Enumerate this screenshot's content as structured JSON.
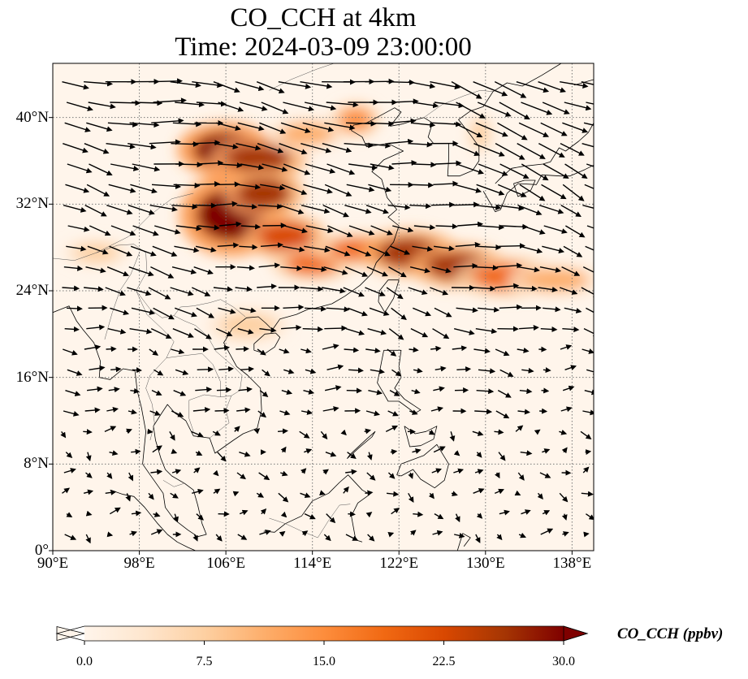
{
  "title": {
    "line1": "CO_CCH at 4km",
    "line2": "Time: 2024-03-09 23:00:00"
  },
  "map": {
    "lon_range": [
      90,
      140
    ],
    "lat_range": [
      0,
      45
    ],
    "lat_ticks": [
      {
        "value": 0,
        "label": "0°"
      },
      {
        "value": 8,
        "label": "8°N"
      },
      {
        "value": 16,
        "label": "16°N"
      },
      {
        "value": 24,
        "label": "24°N"
      },
      {
        "value": 32,
        "label": "32°N"
      },
      {
        "value": 40,
        "label": "40°N"
      }
    ],
    "lon_ticks": [
      {
        "value": 90,
        "label": "90°E"
      },
      {
        "value": 98,
        "label": "98°E"
      },
      {
        "value": 106,
        "label": "106°E"
      },
      {
        "value": 114,
        "label": "114°E"
      },
      {
        "value": 122,
        "label": "122°E"
      },
      {
        "value": 130,
        "label": "130°E"
      },
      {
        "value": 138,
        "label": "138°E"
      }
    ],
    "gridlines": true,
    "plumes": [
      {
        "lon": 106.0,
        "lat": 37.0,
        "rx": 3.0,
        "ry": 1.6,
        "value": 30
      },
      {
        "lon": 109.0,
        "lat": 36.2,
        "rx": 3.0,
        "ry": 1.3,
        "value": 27
      },
      {
        "lon": 106.5,
        "lat": 31.0,
        "rx": 3.2,
        "ry": 2.4,
        "value": 30
      },
      {
        "lon": 109.5,
        "lat": 33.0,
        "rx": 2.5,
        "ry": 1.4,
        "value": 26
      },
      {
        "lon": 111.5,
        "lat": 29.0,
        "rx": 2.5,
        "ry": 1.3,
        "value": 24
      },
      {
        "lon": 114.0,
        "lat": 26.5,
        "rx": 2.5,
        "ry": 1.0,
        "value": 20
      },
      {
        "lon": 118.5,
        "lat": 27.8,
        "rx": 3.0,
        "ry": 1.0,
        "value": 18
      },
      {
        "lon": 123.0,
        "lat": 27.5,
        "rx": 3.0,
        "ry": 1.4,
        "value": 28
      },
      {
        "lon": 127.5,
        "lat": 26.3,
        "rx": 3.0,
        "ry": 1.3,
        "value": 27
      },
      {
        "lon": 132.0,
        "lat": 25.3,
        "rx": 3.2,
        "ry": 1.2,
        "value": 18
      },
      {
        "lon": 136.5,
        "lat": 25.0,
        "rx": 3.0,
        "ry": 1.0,
        "value": 12
      },
      {
        "lon": 113.5,
        "lat": 38.5,
        "rx": 2.5,
        "ry": 1.0,
        "value": 12
      },
      {
        "lon": 118.0,
        "lat": 39.8,
        "rx": 1.5,
        "ry": 1.0,
        "value": 14
      },
      {
        "lon": 108.0,
        "lat": 20.8,
        "rx": 2.5,
        "ry": 1.0,
        "value": 6
      },
      {
        "lon": 94.0,
        "lat": 27.5,
        "rx": 2.0,
        "ry": 0.8,
        "value": 6
      },
      {
        "lon": 129.5,
        "lat": 38.5,
        "rx": 0.8,
        "ry": 1.2,
        "value": 7
      }
    ],
    "coastlines": [
      [
        [
          90.0,
          22.0
        ],
        [
          91.5,
          22.6
        ],
        [
          92.2,
          21.2
        ],
        [
          92.8,
          20.4
        ],
        [
          93.8,
          19.2
        ],
        [
          94.4,
          17.5
        ],
        [
          94.3,
          16.0
        ],
        [
          95.3,
          15.8
        ],
        [
          96.5,
          16.8
        ],
        [
          97.6,
          16.6
        ],
        [
          97.8,
          14.8
        ],
        [
          98.2,
          13.2
        ],
        [
          98.6,
          11.0
        ],
        [
          98.4,
          9.0
        ],
        [
          98.3,
          8.0
        ],
        [
          99.0,
          7.0
        ],
        [
          100.2,
          5.3
        ],
        [
          100.4,
          4.0
        ],
        [
          101.2,
          2.9
        ],
        [
          102.5,
          1.9
        ],
        [
          103.4,
          1.3
        ],
        [
          104.2,
          1.5
        ],
        [
          103.8,
          2.5
        ],
        [
          103.4,
          4.2
        ],
        [
          103.0,
          5.6
        ],
        [
          102.2,
          6.2
        ],
        [
          101.0,
          6.9
        ],
        [
          100.4,
          7.5
        ],
        [
          100.0,
          8.5
        ],
        [
          99.5,
          10.2
        ],
        [
          99.3,
          11.5
        ],
        [
          100.0,
          12.6
        ],
        [
          100.6,
          13.5
        ],
        [
          101.3,
          12.7
        ],
        [
          102.3,
          12.0
        ],
        [
          103.0,
          10.6
        ],
        [
          104.5,
          10.4
        ],
        [
          105.0,
          9.0
        ],
        [
          106.7,
          10.2
        ],
        [
          107.6,
          10.8
        ],
        [
          108.9,
          11.3
        ],
        [
          109.3,
          13.0
        ],
        [
          109.2,
          15.0
        ],
        [
          108.0,
          16.2
        ],
        [
          107.0,
          17.0
        ],
        [
          106.4,
          18.1
        ],
        [
          105.8,
          19.2
        ],
        [
          106.6,
          20.5
        ],
        [
          107.9,
          21.5
        ],
        [
          109.0,
          21.6
        ],
        [
          109.7,
          21.0
        ],
        [
          110.3,
          20.4
        ],
        [
          111.0,
          21.4
        ],
        [
          112.5,
          21.8
        ],
        [
          113.6,
          22.3
        ],
        [
          114.3,
          22.4
        ],
        [
          115.8,
          22.8
        ],
        [
          117.0,
          23.5
        ],
        [
          118.4,
          24.5
        ],
        [
          119.5,
          25.6
        ],
        [
          119.9,
          26.6
        ],
        [
          120.7,
          27.5
        ],
        [
          121.5,
          28.5
        ],
        [
          122.0,
          30.0
        ],
        [
          121.0,
          30.8
        ],
        [
          121.8,
          31.5
        ],
        [
          120.9,
          32.6
        ],
        [
          120.4,
          34.3
        ],
        [
          119.5,
          35.0
        ],
        [
          120.6,
          36.1
        ],
        [
          122.4,
          36.9
        ],
        [
          121.0,
          37.6
        ],
        [
          119.0,
          37.3
        ],
        [
          118.6,
          38.2
        ],
        [
          117.6,
          38.8
        ],
        [
          117.8,
          39.3
        ],
        [
          119.0,
          39.5
        ],
        [
          120.5,
          40.3
        ],
        [
          121.6,
          40.9
        ],
        [
          122.2,
          40.5
        ],
        [
          121.2,
          39.2
        ],
        [
          122.3,
          39.4
        ],
        [
          123.6,
          39.8
        ],
        [
          124.3,
          40.0
        ],
        [
          125.1,
          39.5
        ],
        [
          124.7,
          38.2
        ],
        [
          125.2,
          37.6
        ],
        [
          126.6,
          37.6
        ],
        [
          126.6,
          36.2
        ],
        [
          126.5,
          34.6
        ],
        [
          127.6,
          34.6
        ],
        [
          128.8,
          35.1
        ],
        [
          129.4,
          36.0
        ],
        [
          129.4,
          37.3
        ],
        [
          128.6,
          38.4
        ],
        [
          127.5,
          39.8
        ],
        [
          128.6,
          40.6
        ],
        [
          129.8,
          41.0
        ],
        [
          130.7,
          42.4
        ],
        [
          132.0,
          43.2
        ],
        [
          133.4,
          42.9
        ],
        [
          135.2,
          43.9
        ],
        [
          137.0,
          45.0
        ]
      ],
      [
        [
          108.6,
          18.5
        ],
        [
          109.6,
          18.2
        ],
        [
          110.5,
          18.8
        ],
        [
          111.0,
          19.7
        ],
        [
          110.6,
          20.1
        ],
        [
          109.6,
          20.0
        ],
        [
          108.6,
          19.1
        ],
        [
          108.6,
          18.5
        ]
      ],
      [
        [
          120.1,
          23.0
        ],
        [
          120.7,
          22.0
        ],
        [
          121.5,
          23.3
        ],
        [
          122.0,
          25.0
        ],
        [
          121.0,
          25.0
        ],
        [
          120.2,
          24.0
        ],
        [
          120.1,
          23.0
        ]
      ],
      [
        [
          120.6,
          18.5
        ],
        [
          122.2,
          18.5
        ],
        [
          122.0,
          17.0
        ],
        [
          122.2,
          16.0
        ],
        [
          121.6,
          15.0
        ],
        [
          122.5,
          14.0
        ],
        [
          124.0,
          13.0
        ],
        [
          123.5,
          12.7
        ],
        [
          122.0,
          13.8
        ],
        [
          121.0,
          13.8
        ],
        [
          120.6,
          14.5
        ],
        [
          120.0,
          15.5
        ],
        [
          120.2,
          16.5
        ],
        [
          120.4,
          17.5
        ],
        [
          120.6,
          18.5
        ]
      ],
      [
        [
          122.5,
          11.5
        ],
        [
          123.5,
          10.8
        ],
        [
          124.5,
          11.0
        ],
        [
          125.5,
          11.5
        ],
        [
          125.2,
          10.3
        ],
        [
          124.0,
          9.7
        ],
        [
          123.0,
          9.6
        ],
        [
          122.5,
          11.5
        ]
      ],
      [
        [
          121.8,
          7.0
        ],
        [
          122.2,
          8.0
        ],
        [
          123.5,
          8.5
        ],
        [
          124.3,
          8.8
        ],
        [
          125.5,
          9.8
        ],
        [
          126.6,
          8.0
        ],
        [
          126.2,
          6.5
        ],
        [
          125.3,
          5.8
        ],
        [
          124.0,
          6.6
        ],
        [
          123.3,
          7.5
        ],
        [
          122.2,
          6.9
        ],
        [
          121.8,
          7.0
        ]
      ],
      [
        [
          117.2,
          8.5
        ],
        [
          118.3,
          9.5
        ],
        [
          119.5,
          10.5
        ],
        [
          119.8,
          11.0
        ],
        [
          119.0,
          10.3
        ],
        [
          117.5,
          8.9
        ],
        [
          117.2,
          8.5
        ]
      ],
      [
        [
          109.5,
          1.8
        ],
        [
          110.5,
          1.7
        ],
        [
          111.5,
          2.5
        ],
        [
          113.0,
          3.2
        ],
        [
          114.0,
          4.6
        ],
        [
          115.5,
          5.3
        ],
        [
          116.5,
          6.3
        ],
        [
          117.3,
          7.0
        ],
        [
          118.6,
          5.6
        ],
        [
          119.3,
          5.2
        ],
        [
          118.2,
          4.4
        ],
        [
          117.6,
          3.2
        ],
        [
          118.0,
          1.0
        ],
        [
          118.6,
          0.8
        ]
      ],
      [
        [
          95.3,
          5.6
        ],
        [
          96.5,
          5.2
        ],
        [
          97.5,
          5.0
        ],
        [
          98.5,
          4.0
        ],
        [
          99.7,
          2.5
        ],
        [
          100.6,
          1.5
        ],
        [
          101.5,
          0.8
        ],
        [
          102.5,
          0.3
        ],
        [
          103.2,
          0.0
        ]
      ],
      [
        [
          127.4,
          0.0
        ],
        [
          127.9,
          1.6
        ],
        [
          128.6,
          1.2
        ],
        [
          128.0,
          0.4
        ]
      ],
      [
        [
          129.8,
          33.2
        ],
        [
          130.9,
          31.3
        ],
        [
          131.4,
          31.5
        ],
        [
          132.0,
          33.0
        ],
        [
          133.0,
          33.9
        ],
        [
          134.7,
          33.8
        ],
        [
          135.2,
          34.7
        ],
        [
          136.9,
          34.6
        ],
        [
          137.8,
          34.6
        ],
        [
          139.2,
          35.2
        ],
        [
          140.0,
          35.6
        ]
      ],
      [
        [
          130.9,
          33.9
        ],
        [
          131.4,
          34.4
        ],
        [
          132.4,
          35.3
        ],
        [
          133.5,
          35.5
        ],
        [
          135.3,
          35.7
        ],
        [
          136.0,
          35.9
        ],
        [
          136.8,
          37.2
        ],
        [
          137.4,
          36.9
        ],
        [
          138.6,
          37.8
        ],
        [
          139.5,
          38.6
        ],
        [
          140.0,
          39.5
        ]
      ],
      [
        [
          132.6,
          33.9
        ],
        [
          133.6,
          34.2
        ],
        [
          134.6,
          34.2
        ],
        [
          134.2,
          33.3
        ],
        [
          133.0,
          32.7
        ],
        [
          132.6,
          33.9
        ]
      ],
      [
        [
          138.2,
          43.0
        ],
        [
          140.0,
          43.5
        ]
      ]
    ],
    "borders": [
      [
        [
          90.0,
          27.0
        ],
        [
          92.0,
          26.8
        ],
        [
          94.0,
          27.5
        ],
        [
          96.0,
          28.2
        ],
        [
          97.5,
          28.3
        ],
        [
          98.6,
          27.5
        ],
        [
          98.7,
          25.8
        ],
        [
          97.7,
          24.0
        ],
        [
          99.0,
          22.3
        ],
        [
          100.1,
          21.5
        ],
        [
          101.2,
          21.7
        ],
        [
          101.8,
          22.5
        ],
        [
          103.0,
          22.6
        ],
        [
          104.5,
          22.9
        ],
        [
          105.5,
          23.2
        ],
        [
          106.7,
          22.5
        ],
        [
          107.8,
          21.6
        ]
      ],
      [
        [
          98.0,
          27.5
        ],
        [
          97.2,
          25.5
        ],
        [
          96.2,
          24.0
        ],
        [
          95.5,
          22.0
        ],
        [
          94.8,
          19.5
        ]
      ],
      [
        [
          97.7,
          24.0
        ],
        [
          98.7,
          21.8
        ],
        [
          100.2,
          20.4
        ],
        [
          101.2,
          19.3
        ],
        [
          100.5,
          17.8
        ],
        [
          99.0,
          16.2
        ],
        [
          98.6,
          15.0
        ],
        [
          99.2,
          13.5
        ],
        [
          99.4,
          11.8
        ],
        [
          99.0,
          10.2
        ]
      ],
      [
        [
          101.2,
          21.7
        ],
        [
          102.2,
          21.2
        ],
        [
          103.2,
          20.8
        ],
        [
          104.3,
          19.8
        ],
        [
          105.1,
          18.4
        ],
        [
          106.6,
          17.1
        ],
        [
          107.5,
          16.2
        ],
        [
          107.3,
          14.8
        ],
        [
          106.5,
          14.3
        ],
        [
          105.5,
          14.2
        ],
        [
          104.0,
          14.4
        ],
        [
          102.6,
          13.9
        ],
        [
          102.6,
          12.2
        ],
        [
          103.0,
          11.0
        ]
      ],
      [
        [
          100.5,
          17.8
        ],
        [
          102.0,
          18.0
        ],
        [
          103.8,
          18.2
        ],
        [
          104.8,
          17.2
        ],
        [
          105.5,
          15.6
        ],
        [
          105.5,
          14.2
        ]
      ],
      [
        [
          106.5,
          14.3
        ],
        [
          106.0,
          13.0
        ],
        [
          106.3,
          11.8
        ],
        [
          105.0,
          10.8
        ],
        [
          104.5,
          10.4
        ]
      ],
      [
        [
          100.2,
          6.5
        ],
        [
          101.2,
          5.9
        ],
        [
          102.1,
          6.2
        ]
      ],
      [
        [
          94.0,
          27.5
        ],
        [
          97.0,
          29.0
        ],
        [
          99.0,
          31.0
        ],
        [
          101.0,
          32.5
        ],
        [
          103.0,
          33.0
        ]
      ],
      [
        [
          110.0,
          42.5
        ],
        [
          112.0,
          43.5
        ],
        [
          114.5,
          44.5
        ],
        [
          116.0,
          45.0
        ]
      ],
      [
        [
          124.3,
          40.0
        ],
        [
          126.0,
          41.2
        ],
        [
          128.0,
          42.0
        ],
        [
          129.5,
          42.5
        ],
        [
          130.7,
          42.4
        ]
      ],
      [
        [
          110.0,
          3.0
        ],
        [
          111.5,
          2.5
        ],
        [
          113.0,
          1.8
        ],
        [
          114.5,
          1.2
        ],
        [
          115.5,
          2.8
        ],
        [
          116.5,
          4.2
        ],
        [
          117.5,
          4.3
        ]
      ]
    ],
    "wind_note": "vectors"
  },
  "colorbar": {
    "min": 0,
    "max": 30,
    "ticks": [
      "0.0",
      "7.5",
      "15.0",
      "22.5",
      "30.0"
    ],
    "tick_values": [
      0,
      7.5,
      15,
      22.5,
      30
    ],
    "label": "CO_CCH (ppbv)",
    "extend": "both",
    "colors": [
      "#fff5eb",
      "#fee6ce",
      "#fdd0a2",
      "#fdae6b",
      "#fd8d3c",
      "#f16913",
      "#d94801",
      "#a63603",
      "#7f0000"
    ]
  }
}
